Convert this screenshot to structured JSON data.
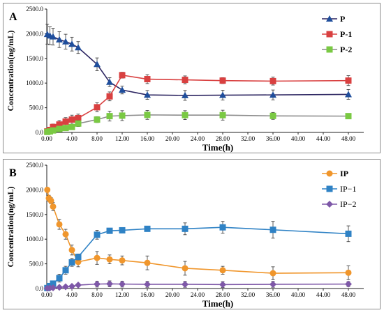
{
  "chart_data": [
    {
      "type": "line",
      "panel_label": "A",
      "xlabel": "Time(h)",
      "ylabel": "Concentration(ng/mL)",
      "xlim": [
        0,
        50
      ],
      "ylim": [
        0,
        2500
      ],
      "x_ticks": [
        "0.00",
        "4.00",
        "8.00",
        "12.00",
        "16.00",
        "20.00",
        "24.00",
        "28.00",
        "32.00",
        "36.00",
        "40.00",
        "44.00",
        "48.00"
      ],
      "y_ticks": [
        "0.0",
        "500.0",
        "1000.0",
        "1500.0",
        "2000.0",
        "2500.0"
      ],
      "grid": false,
      "legend_position": "top-right",
      "series": [
        {
          "name": "P",
          "color": "#1f4e9c",
          "line_color": "#2b2460",
          "marker": "triangle",
          "points": [
            {
              "x": 0.083,
              "y": 1990,
              "err": 200
            },
            {
              "x": 0.5,
              "y": 1960,
              "err": 180
            },
            {
              "x": 1,
              "y": 1940,
              "err": 170
            },
            {
              "x": 2,
              "y": 1880,
              "err": 160
            },
            {
              "x": 3,
              "y": 1840,
              "err": 150
            },
            {
              "x": 4,
              "y": 1790,
              "err": 140
            },
            {
              "x": 5,
              "y": 1720,
              "err": 120
            },
            {
              "x": 8,
              "y": 1380,
              "err": 130
            },
            {
              "x": 10,
              "y": 1020,
              "err": 90
            },
            {
              "x": 12,
              "y": 860,
              "err": 80
            },
            {
              "x": 16,
              "y": 760,
              "err": 90
            },
            {
              "x": 22,
              "y": 750,
              "err": 100
            },
            {
              "x": 28,
              "y": 755,
              "err": 100
            },
            {
              "x": 36,
              "y": 760,
              "err": 100
            },
            {
              "x": 48,
              "y": 770,
              "err": 100
            }
          ]
        },
        {
          "name": "P-1",
          "color": "#d94040",
          "line_color": "#d94040",
          "marker": "square",
          "points": [
            {
              "x": 0.083,
              "y": 20,
              "err": 15
            },
            {
              "x": 0.5,
              "y": 50,
              "err": 30
            },
            {
              "x": 1,
              "y": 110,
              "err": 60
            },
            {
              "x": 2,
              "y": 160,
              "err": 80
            },
            {
              "x": 3,
              "y": 220,
              "err": 80
            },
            {
              "x": 4,
              "y": 260,
              "err": 90
            },
            {
              "x": 5,
              "y": 290,
              "err": 80
            },
            {
              "x": 8,
              "y": 510,
              "err": 90
            },
            {
              "x": 10,
              "y": 730,
              "err": 90
            },
            {
              "x": 12,
              "y": 1160,
              "err": 60
            },
            {
              "x": 16,
              "y": 1080,
              "err": 90
            },
            {
              "x": 22,
              "y": 1065,
              "err": 80
            },
            {
              "x": 28,
              "y": 1050,
              "err": 60
            },
            {
              "x": 36,
              "y": 1040,
              "err": 80
            },
            {
              "x": 48,
              "y": 1050,
              "err": 100
            }
          ]
        },
        {
          "name": "P-2",
          "color": "#7ac943",
          "line_color": "#8c8c8c",
          "marker": "square",
          "points": [
            {
              "x": 0.083,
              "y": 10,
              "err": 5
            },
            {
              "x": 0.5,
              "y": 20,
              "err": 10
            },
            {
              "x": 1,
              "y": 40,
              "err": 20
            },
            {
              "x": 2,
              "y": 70,
              "err": 30
            },
            {
              "x": 3,
              "y": 90,
              "err": 40
            },
            {
              "x": 4,
              "y": 110,
              "err": 50
            },
            {
              "x": 5,
              "y": 180,
              "err": 60
            },
            {
              "x": 8,
              "y": 260,
              "err": 60
            },
            {
              "x": 10,
              "y": 330,
              "err": 100
            },
            {
              "x": 12,
              "y": 340,
              "err": 100
            },
            {
              "x": 16,
              "y": 355,
              "err": 90
            },
            {
              "x": 22,
              "y": 350,
              "err": 90
            },
            {
              "x": 28,
              "y": 350,
              "err": 100
            },
            {
              "x": 36,
              "y": 335,
              "err": 70
            },
            {
              "x": 48,
              "y": 330,
              "err": 20
            }
          ]
        }
      ]
    },
    {
      "type": "line",
      "panel_label": "B",
      "xlabel": "Time(h)",
      "ylabel": "Concentration(ng/mL)",
      "xlim": [
        0,
        50
      ],
      "ylim": [
        0,
        2500
      ],
      "x_ticks": [
        "0.00",
        "4.00",
        "8.00",
        "12.00",
        "16.00",
        "20.00",
        "24.00",
        "28.00",
        "32.00",
        "36.00",
        "40.00",
        "44.00",
        "48.00"
      ],
      "y_ticks": [
        "0.0",
        "500.0",
        "1000.0",
        "1500.0",
        "2000.0",
        "2500.0"
      ],
      "grid": false,
      "legend_position": "top-right",
      "series": [
        {
          "name": "IP",
          "color": "#f0962c",
          "line_color": "#f0962c",
          "marker": "circle",
          "points": [
            {
              "x": 0.083,
              "y": 2000,
              "err": 40
            },
            {
              "x": 0.33,
              "y": 1830,
              "err": 60
            },
            {
              "x": 0.67,
              "y": 1780,
              "err": 60
            },
            {
              "x": 1,
              "y": 1660,
              "err": 80
            },
            {
              "x": 2,
              "y": 1300,
              "err": 100
            },
            {
              "x": 3,
              "y": 1100,
              "err": 100
            },
            {
              "x": 4,
              "y": 780,
              "err": 100
            },
            {
              "x": 5,
              "y": 540,
              "err": 100
            },
            {
              "x": 8,
              "y": 620,
              "err": 130
            },
            {
              "x": 10,
              "y": 590,
              "err": 90
            },
            {
              "x": 12,
              "y": 570,
              "err": 90
            },
            {
              "x": 16,
              "y": 520,
              "err": 140
            },
            {
              "x": 22,
              "y": 410,
              "err": 140
            },
            {
              "x": 28,
              "y": 370,
              "err": 80
            },
            {
              "x": 36,
              "y": 310,
              "err": 130
            },
            {
              "x": 48,
              "y": 320,
              "err": 140
            }
          ]
        },
        {
          "name": "IP−1",
          "color": "#2f82c5",
          "line_color": "#2f82c5",
          "marker": "square",
          "points": [
            {
              "x": 0.083,
              "y": 10,
              "err": 5
            },
            {
              "x": 0.5,
              "y": 50,
              "err": 20
            },
            {
              "x": 1,
              "y": 100,
              "err": 40
            },
            {
              "x": 2,
              "y": 210,
              "err": 80
            },
            {
              "x": 3,
              "y": 370,
              "err": 80
            },
            {
              "x": 4,
              "y": 530,
              "err": 80
            },
            {
              "x": 5,
              "y": 640,
              "err": 60
            },
            {
              "x": 8,
              "y": 1090,
              "err": 90
            },
            {
              "x": 10,
              "y": 1170,
              "err": 30
            },
            {
              "x": 12,
              "y": 1180,
              "err": 30
            },
            {
              "x": 16,
              "y": 1210,
              "err": 50
            },
            {
              "x": 22,
              "y": 1210,
              "err": 120
            },
            {
              "x": 28,
              "y": 1240,
              "err": 120
            },
            {
              "x": 36,
              "y": 1190,
              "err": 170
            },
            {
              "x": 48,
              "y": 1110,
              "err": 160
            }
          ]
        },
        {
          "name": "IP−2",
          "color": "#7e58a8",
          "line_color": "#7e58a8",
          "marker": "diamond",
          "points": [
            {
              "x": 0.083,
              "y": 5,
              "err": 3
            },
            {
              "x": 0.5,
              "y": 10,
              "err": 5
            },
            {
              "x": 1,
              "y": 15,
              "err": 8
            },
            {
              "x": 2,
              "y": 25,
              "err": 10
            },
            {
              "x": 3,
              "y": 35,
              "err": 12
            },
            {
              "x": 4,
              "y": 45,
              "err": 15
            },
            {
              "x": 5,
              "y": 70,
              "err": 20
            },
            {
              "x": 8,
              "y": 90,
              "err": 60
            },
            {
              "x": 10,
              "y": 95,
              "err": 60
            },
            {
              "x": 12,
              "y": 90,
              "err": 60
            },
            {
              "x": 16,
              "y": 85,
              "err": 60
            },
            {
              "x": 22,
              "y": 85,
              "err": 60
            },
            {
              "x": 28,
              "y": 80,
              "err": 60
            },
            {
              "x": 36,
              "y": 85,
              "err": 60
            },
            {
              "x": 48,
              "y": 90,
              "err": 50
            }
          ]
        }
      ]
    }
  ]
}
